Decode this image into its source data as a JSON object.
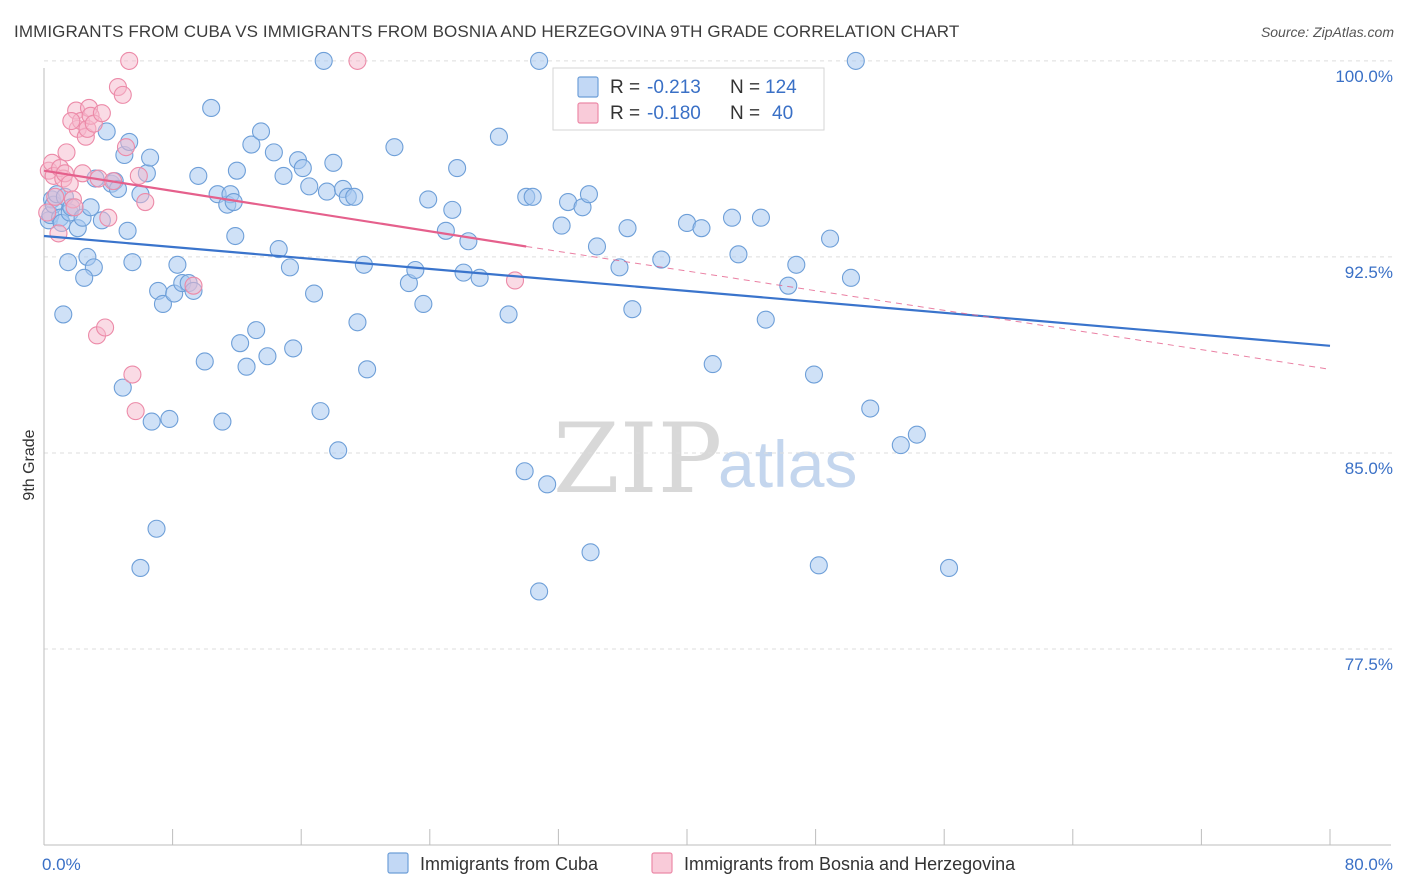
{
  "title": "IMMIGRANTS FROM CUBA VS IMMIGRANTS FROM BOSNIA AND HERZEGOVINA 9TH GRADE CORRELATION CHART",
  "source": "Source: ZipAtlas.com",
  "watermark": {
    "part1": "ZIP",
    "part2": "atlas"
  },
  "stats": {
    "cuba": {
      "r_label": "R =",
      "r_value": "-0.213",
      "n_label": "N =",
      "n_value": "124"
    },
    "bosnia": {
      "r_label": "R =",
      "r_value": "-0.180",
      "n_label": "N =",
      "n_value": "40"
    }
  },
  "colors": {
    "cuba_fill": "#a8c8f0",
    "cuba_stroke": "#6e9fd8",
    "cuba_line": "#3a74cc",
    "bosnia_fill": "#f6b8cc",
    "bosnia_stroke": "#ec8aa8",
    "bosnia_line": "#e5608c",
    "tick_text": "#3a70c6",
    "grid": "#dddddd"
  },
  "chart_data": {
    "type": "scatter",
    "title": "IMMIGRANTS FROM CUBA VS IMMIGRANTS FROM BOSNIA AND HERZEGOVINA 9TH GRADE CORRELATION CHART",
    "xlabel": "",
    "ylabel": "9th Grade",
    "xlim": [
      0,
      80
    ],
    "ylim": [
      70,
      100.8
    ],
    "x_tick_labels": [
      "0.0%",
      "80.0%"
    ],
    "y_ticks": [
      77.5,
      85.0,
      92.5,
      100.0
    ],
    "y_tick_labels": [
      "77.5%",
      "85.0%",
      "92.5%",
      "100.0%"
    ],
    "grid": "horizontal dashed",
    "legend_position": "bottom-center",
    "series": [
      {
        "name": "Immigrants from Cuba",
        "trend": {
          "x": [
            0,
            80
          ],
          "y": [
            93.3,
            89.1
          ]
        },
        "points": [
          [
            0.3,
            93.9
          ],
          [
            0.4,
            94.1
          ],
          [
            0.5,
            94.7
          ],
          [
            0.6,
            94.5
          ],
          [
            0.8,
            94.9
          ],
          [
            1.0,
            94.0
          ],
          [
            1.1,
            93.8
          ],
          [
            1.3,
            94.8
          ],
          [
            1.6,
            94.2
          ],
          [
            1.7,
            94.4
          ],
          [
            1.2,
            90.3
          ],
          [
            1.5,
            92.3
          ],
          [
            2.1,
            93.6
          ],
          [
            2.4,
            94.0
          ],
          [
            2.7,
            92.5
          ],
          [
            2.9,
            94.4
          ],
          [
            3.1,
            92.1
          ],
          [
            2.5,
            91.7
          ],
          [
            3.6,
            93.9
          ],
          [
            3.2,
            95.5
          ],
          [
            3.9,
            97.3
          ],
          [
            4.2,
            95.3
          ],
          [
            4.4,
            95.4
          ],
          [
            4.6,
            95.1
          ],
          [
            4.9,
            87.5
          ],
          [
            5.0,
            96.4
          ],
          [
            5.3,
            96.9
          ],
          [
            5.2,
            93.5
          ],
          [
            5.5,
            92.3
          ],
          [
            6.0,
            94.9
          ],
          [
            6.4,
            95.7
          ],
          [
            6.7,
            86.2
          ],
          [
            7.1,
            91.2
          ],
          [
            7.4,
            90.7
          ],
          [
            7.8,
            86.3
          ],
          [
            8.1,
            91.1
          ],
          [
            8.3,
            92.2
          ],
          [
            8.6,
            91.5
          ],
          [
            9.0,
            91.5
          ],
          [
            9.3,
            91.2
          ],
          [
            9.6,
            95.6
          ],
          [
            10.0,
            88.5
          ],
          [
            10.4,
            98.2
          ],
          [
            10.8,
            94.9
          ],
          [
            11.1,
            86.2
          ],
          [
            11.4,
            94.5
          ],
          [
            11.6,
            94.9
          ],
          [
            11.9,
            93.3
          ],
          [
            12.2,
            89.2
          ],
          [
            12.6,
            88.3
          ],
          [
            12.9,
            96.8
          ],
          [
            13.2,
            89.7
          ],
          [
            13.5,
            97.3
          ],
          [
            13.9,
            88.7
          ],
          [
            14.3,
            96.5
          ],
          [
            14.6,
            92.8
          ],
          [
            14.9,
            95.6
          ],
          [
            15.3,
            92.1
          ],
          [
            15.5,
            89.0
          ],
          [
            15.8,
            96.2
          ],
          [
            16.1,
            95.9
          ],
          [
            16.5,
            95.2
          ],
          [
            16.8,
            91.1
          ],
          [
            17.2,
            86.6
          ],
          [
            17.6,
            95.0
          ],
          [
            18.0,
            96.1
          ],
          [
            18.3,
            85.1
          ],
          [
            18.6,
            95.1
          ],
          [
            18.9,
            94.8
          ],
          [
            19.3,
            94.8
          ],
          [
            19.5,
            90.0
          ],
          [
            19.9,
            92.2
          ],
          [
            20.1,
            88.2
          ],
          [
            6.0,
            80.6
          ],
          [
            7.0,
            82.1
          ],
          [
            12.0,
            95.8
          ],
          [
            6.6,
            96.3
          ],
          [
            11.8,
            94.6
          ],
          [
            21.8,
            96.7
          ],
          [
            22.7,
            91.5
          ],
          [
            23.1,
            92.0
          ],
          [
            23.6,
            90.7
          ],
          [
            23.9,
            94.7
          ],
          [
            25.0,
            93.5
          ],
          [
            25.4,
            94.3
          ],
          [
            25.7,
            95.9
          ],
          [
            26.1,
            91.9
          ],
          [
            26.4,
            93.1
          ],
          [
            27.1,
            91.7
          ],
          [
            28.3,
            97.1
          ],
          [
            28.9,
            90.3
          ],
          [
            29.9,
            84.3
          ],
          [
            30.0,
            94.8
          ],
          [
            30.4,
            94.8
          ],
          [
            30.8,
            79.7
          ],
          [
            31.3,
            83.8
          ],
          [
            32.2,
            93.7
          ],
          [
            32.6,
            94.6
          ],
          [
            33.5,
            94.4
          ],
          [
            34.0,
            81.2
          ],
          [
            34.4,
            92.9
          ],
          [
            33.9,
            94.9
          ],
          [
            35.8,
            92.1
          ],
          [
            36.3,
            93.6
          ],
          [
            36.6,
            90.5
          ],
          [
            38.4,
            92.4
          ],
          [
            40.0,
            93.8
          ],
          [
            40.9,
            93.6
          ],
          [
            41.6,
            88.4
          ],
          [
            42.8,
            94.0
          ],
          [
            43.2,
            92.6
          ],
          [
            44.6,
            94.0
          ],
          [
            44.9,
            90.1
          ],
          [
            46.3,
            91.4
          ],
          [
            46.8,
            92.2
          ],
          [
            47.9,
            88.0
          ],
          [
            48.9,
            93.2
          ],
          [
            48.2,
            80.7
          ],
          [
            50.2,
            91.7
          ],
          [
            51.4,
            86.7
          ],
          [
            53.3,
            85.3
          ],
          [
            54.3,
            85.7
          ],
          [
            56.3,
            80.6
          ],
          [
            50.5,
            100.0
          ],
          [
            30.8,
            100.0
          ],
          [
            17.4,
            100.0
          ]
        ]
      },
      {
        "name": "Immigrants from Bosnia and Herzegovina",
        "trend": {
          "x": [
            0,
            30
          ],
          "y": [
            95.8,
            92.9
          ],
          "dashed_to": {
            "x": 80,
            "y": 88.2
          }
        },
        "points": [
          [
            0.2,
            94.2
          ],
          [
            0.3,
            95.8
          ],
          [
            0.5,
            96.1
          ],
          [
            0.6,
            95.6
          ],
          [
            0.7,
            94.8
          ],
          [
            0.9,
            93.4
          ],
          [
            1.0,
            95.9
          ],
          [
            1.2,
            95.5
          ],
          [
            1.3,
            95.7
          ],
          [
            1.4,
            96.5
          ],
          [
            1.6,
            95.3
          ],
          [
            1.8,
            94.7
          ],
          [
            1.9,
            94.4
          ],
          [
            2.0,
            98.1
          ],
          [
            2.1,
            97.4
          ],
          [
            2.3,
            97.7
          ],
          [
            2.4,
            95.7
          ],
          [
            2.6,
            97.1
          ],
          [
            2.7,
            97.4
          ],
          [
            2.8,
            98.2
          ],
          [
            2.9,
            97.9
          ],
          [
            3.1,
            97.6
          ],
          [
            3.3,
            89.5
          ],
          [
            3.4,
            95.5
          ],
          [
            3.6,
            98.0
          ],
          [
            3.8,
            89.8
          ],
          [
            4.0,
            94.0
          ],
          [
            4.3,
            95.4
          ],
          [
            4.6,
            99.0
          ],
          [
            4.9,
            98.7
          ],
          [
            5.1,
            96.7
          ],
          [
            5.3,
            100.0
          ],
          [
            5.5,
            88.0
          ],
          [
            5.7,
            86.6
          ],
          [
            5.9,
            95.6
          ],
          [
            6.3,
            94.6
          ],
          [
            9.3,
            91.4
          ],
          [
            19.5,
            100.0
          ],
          [
            29.3,
            91.6
          ],
          [
            1.7,
            97.7
          ]
        ]
      }
    ]
  },
  "legend": {
    "cuba": "Immigrants from Cuba",
    "bosnia": "Immigrants from Bosnia and Herzegovina"
  }
}
